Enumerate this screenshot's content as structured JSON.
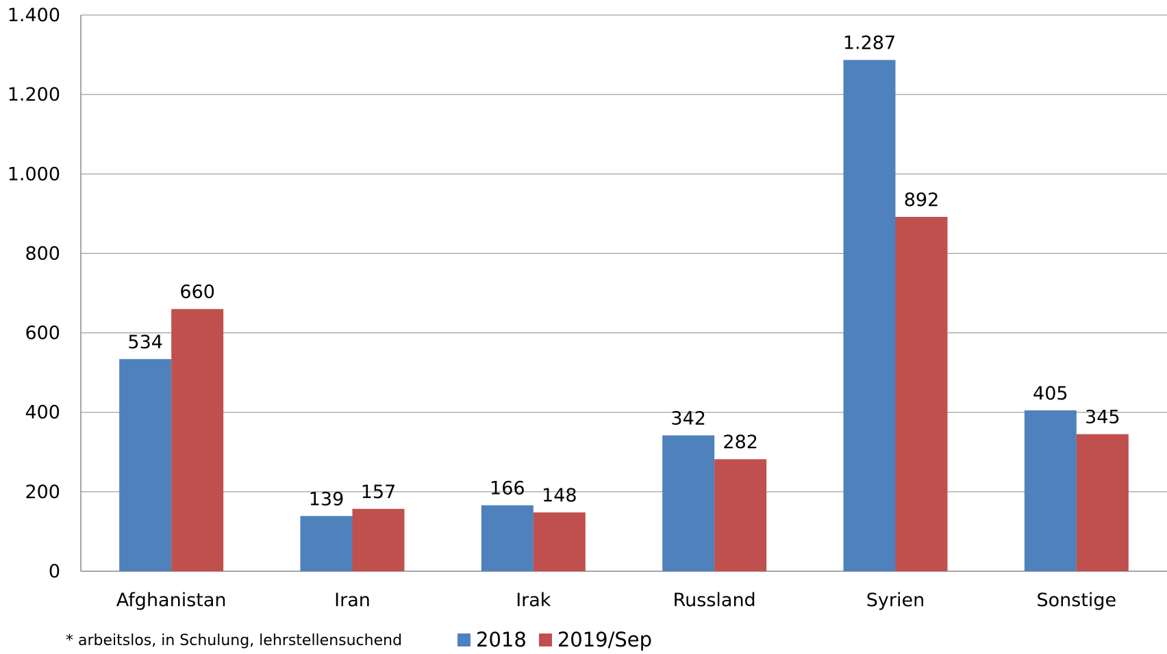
{
  "chart_data": {
    "type": "bar",
    "categories": [
      "Afghanistan",
      "Iran",
      "Irak",
      "Russland",
      "Syrien",
      "Sonstige"
    ],
    "series": [
      {
        "name": "2018",
        "color": "#4F81BD",
        "values": [
          534,
          139,
          166,
          342,
          1287,
          405
        ],
        "labels": [
          "534",
          "139",
          "166",
          "342",
          "1.287",
          "405"
        ]
      },
      {
        "name": "2019/Sep",
        "color": "#C0504D",
        "values": [
          660,
          157,
          148,
          282,
          892,
          345
        ],
        "labels": [
          "660",
          "157",
          "148",
          "282",
          "892",
          "345"
        ]
      }
    ],
    "ylim": [
      0,
      1400
    ],
    "yticks": [
      0,
      200,
      400,
      600,
      800,
      1000,
      1200,
      1400
    ],
    "ytick_labels": [
      "0",
      "200",
      "400",
      "600",
      "800",
      "1.000",
      "1.200",
      "1.400"
    ],
    "grid": true,
    "legend_position": "bottom",
    "footnote": "* arbeitslos, in Schulung, lehrstellensuchend"
  }
}
